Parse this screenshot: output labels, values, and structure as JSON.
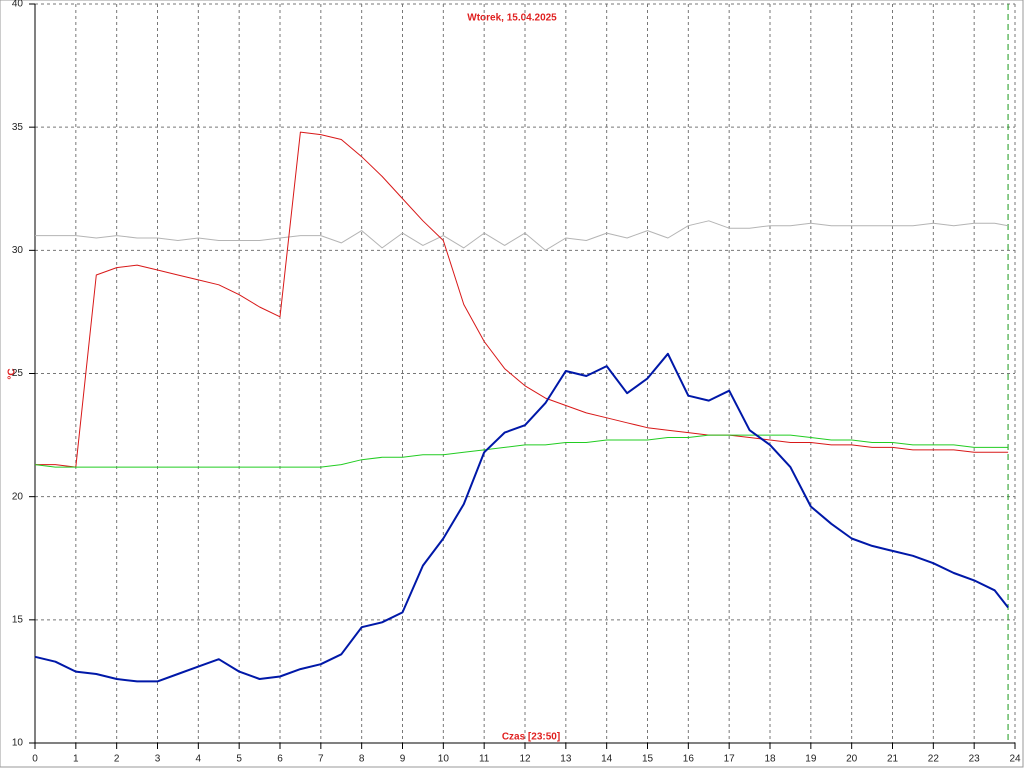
{
  "chart_data": {
    "type": "line",
    "title": "Wtorek, 15.04.2025",
    "y_label": "°C",
    "x_label": "Czas [23:50]",
    "x": [
      0,
      0.5,
      1,
      1.5,
      2,
      2.5,
      3,
      3.5,
      4,
      4.5,
      5,
      5.5,
      6,
      6.5,
      7,
      7.5,
      8,
      8.5,
      9,
      9.5,
      10,
      10.5,
      11,
      11.5,
      12,
      12.5,
      13,
      13.5,
      14,
      14.5,
      15,
      15.5,
      16,
      16.5,
      17,
      17.5,
      18,
      18.5,
      19,
      19.5,
      20,
      20.5,
      21,
      21.5,
      22,
      22.5,
      23,
      23.5,
      23.83
    ],
    "series": [
      {
        "name": "gray",
        "color": "#b4b4b4",
        "width": 1,
        "values": [
          30.6,
          30.6,
          30.6,
          30.5,
          30.6,
          30.5,
          30.5,
          30.4,
          30.5,
          30.4,
          30.4,
          30.4,
          30.5,
          30.6,
          30.6,
          30.3,
          30.8,
          30.1,
          30.7,
          30.2,
          30.6,
          30.1,
          30.7,
          30.2,
          30.7,
          30.0,
          30.5,
          30.4,
          30.7,
          30.5,
          30.8,
          30.5,
          31.0,
          31.2,
          30.9,
          30.9,
          31.0,
          31.0,
          31.1,
          31.0,
          31.0,
          31.0,
          31.0,
          31.0,
          31.1,
          31.0,
          31.1,
          31.1,
          31.0
        ]
      },
      {
        "name": "red",
        "color": "#d81818",
        "width": 1,
        "values": [
          21.3,
          21.3,
          21.2,
          29.0,
          29.3,
          29.4,
          29.2,
          29.0,
          28.8,
          28.6,
          28.2,
          27.7,
          27.3,
          34.8,
          34.7,
          34.5,
          33.8,
          33.0,
          32.1,
          31.2,
          30.4,
          27.8,
          26.3,
          25.2,
          24.5,
          24.0,
          23.7,
          23.4,
          23.2,
          23.0,
          22.8,
          22.7,
          22.6,
          22.5,
          22.5,
          22.4,
          22.3,
          22.2,
          22.2,
          22.1,
          22.1,
          22.0,
          22.0,
          21.9,
          21.9,
          21.9,
          21.8,
          21.8,
          21.8
        ]
      },
      {
        "name": "green",
        "color": "#22cc22",
        "width": 1,
        "values": [
          21.3,
          21.2,
          21.2,
          21.2,
          21.2,
          21.2,
          21.2,
          21.2,
          21.2,
          21.2,
          21.2,
          21.2,
          21.2,
          21.2,
          21.2,
          21.3,
          21.5,
          21.6,
          21.6,
          21.7,
          21.7,
          21.8,
          21.9,
          22.0,
          22.1,
          22.1,
          22.2,
          22.2,
          22.3,
          22.3,
          22.3,
          22.4,
          22.4,
          22.5,
          22.5,
          22.5,
          22.5,
          22.5,
          22.4,
          22.3,
          22.3,
          22.2,
          22.2,
          22.1,
          22.1,
          22.1,
          22.0,
          22.0,
          22.0
        ]
      },
      {
        "name": "blue",
        "color": "#0018a8",
        "width": 2,
        "values": [
          13.5,
          13.3,
          12.9,
          12.8,
          12.6,
          12.5,
          12.5,
          12.8,
          13.1,
          13.4,
          12.9,
          12.6,
          12.7,
          13.0,
          13.2,
          13.6,
          14.7,
          14.9,
          15.3,
          17.2,
          18.3,
          19.7,
          21.8,
          22.6,
          22.9,
          23.8,
          25.1,
          24.9,
          25.3,
          24.2,
          24.8,
          25.8,
          24.1,
          23.9,
          24.3,
          22.7,
          22.1,
          21.2,
          19.6,
          18.9,
          18.3,
          18.0,
          17.8,
          17.6,
          17.3,
          16.9,
          16.6,
          16.2,
          15.5
        ]
      }
    ],
    "xlim": [
      0,
      24
    ],
    "ylim": [
      10,
      40
    ],
    "xticks": [
      0,
      1,
      2,
      3,
      4,
      5,
      6,
      7,
      8,
      9,
      10,
      11,
      12,
      13,
      14,
      15,
      16,
      17,
      18,
      19,
      20,
      21,
      22,
      23,
      24
    ],
    "yticks": [
      10,
      15,
      20,
      25,
      30,
      35,
      40
    ],
    "grid": true,
    "marker_x": 23.83,
    "marker_color": "#1a9a1a"
  }
}
